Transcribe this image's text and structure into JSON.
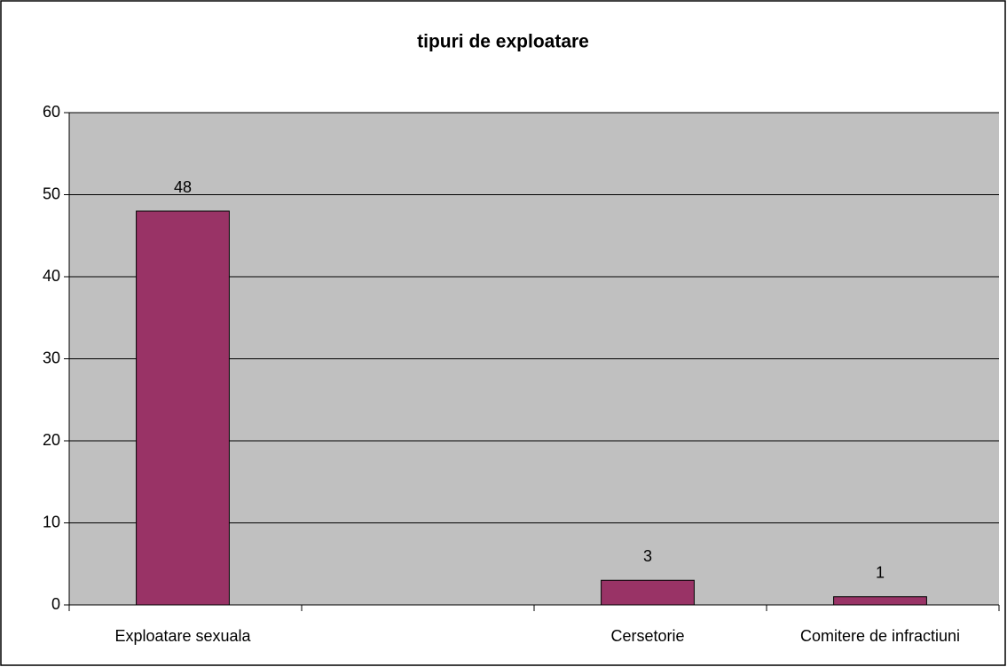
{
  "chart_data": {
    "type": "bar",
    "title": "tipuri de exploatare",
    "categories": [
      "Exploatare sexuala",
      null,
      "Cersetorie",
      "Comitere de infractiuni"
    ],
    "values": [
      48,
      null,
      3,
      1
    ],
    "color": "#993366",
    "ylim": [
      0,
      60
    ],
    "yticks": [
      0,
      10,
      20,
      30,
      40,
      50,
      60
    ],
    "grid": true
  }
}
